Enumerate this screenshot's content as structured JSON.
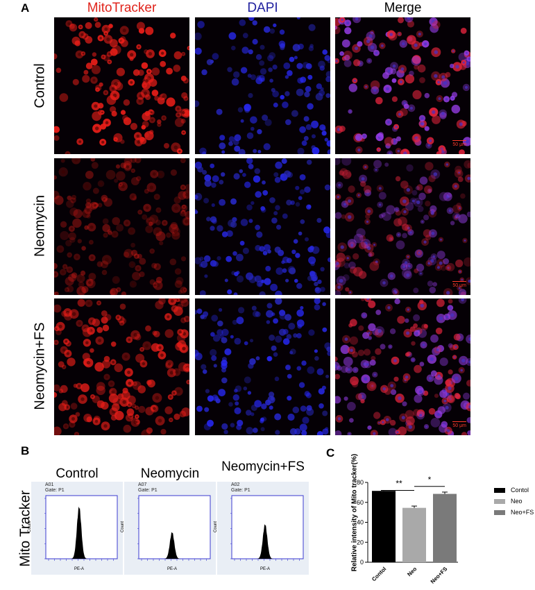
{
  "panel_a": {
    "letter": "A",
    "columns": [
      "MitoTracker",
      "DAPI",
      "Merge"
    ],
    "column_colors": [
      "#e0241c",
      "#1f1f9e",
      "#000000"
    ],
    "rows": [
      "Control",
      "Neomycin",
      "Neomycin+FS"
    ],
    "scale_bar": "50 μm",
    "density": [
      1.0,
      0.45,
      0.85
    ],
    "icons": [
      "microscopy-image"
    ]
  },
  "panel_b": {
    "letter": "B",
    "side_label": "Mito Tracker",
    "axis_x": "PE-A",
    "axis_y": "Count",
    "samples": [
      {
        "title": "Control",
        "well": "A01",
        "gate": "Gate: P1",
        "peak_rel_height": 0.86
      },
      {
        "title": "Neomycin",
        "well": "A07",
        "gate": "Gate: P1",
        "peak_rel_height": 0.44
      },
      {
        "title": "Neomycin+FS",
        "well": "A02",
        "gate": "Gate: P1",
        "peak_rel_height": 0.57
      }
    ],
    "y_ticks": [
      "0",
      "200",
      "400",
      "600",
      "800"
    ]
  },
  "panel_c": {
    "letter": "C"
  },
  "chart_data": {
    "type": "bar",
    "title": "",
    "xlabel": "",
    "ylabel": "Relative intensity of Mito tracker(%)",
    "categories": [
      "Contol",
      "Neo",
      "Neo+FS"
    ],
    "values": [
      71.5,
      54.5,
      68.5
    ],
    "errors": [
      0.5,
      1.8,
      1.8
    ],
    "colors": [
      "#000000",
      "#a9a9a9",
      "#7a7a7a"
    ],
    "ylim": [
      0,
      80
    ],
    "yticks": [
      0,
      20,
      40,
      60,
      80
    ],
    "legend": [
      "Contol",
      "Neo",
      "Neo+FS"
    ],
    "legend_position": "right",
    "significance": [
      {
        "label": "**",
        "between": [
          "Contol",
          "Neo"
        ]
      },
      {
        "label": "*",
        "between": [
          "Neo",
          "Neo+FS"
        ]
      }
    ]
  }
}
